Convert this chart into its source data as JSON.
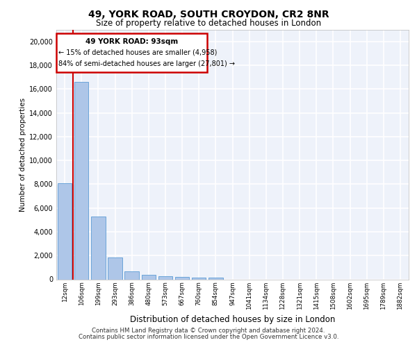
{
  "title_line1": "49, YORK ROAD, SOUTH CROYDON, CR2 8NR",
  "title_line2": "Size of property relative to detached houses in London",
  "xlabel": "Distribution of detached houses by size in London",
  "ylabel": "Number of detached properties",
  "categories": [
    "12sqm",
    "106sqm",
    "199sqm",
    "293sqm",
    "386sqm",
    "480sqm",
    "573sqm",
    "667sqm",
    "760sqm",
    "854sqm",
    "947sqm",
    "1041sqm",
    "1134sqm",
    "1228sqm",
    "1321sqm",
    "1415sqm",
    "1508sqm",
    "1602sqm",
    "1695sqm",
    "1789sqm",
    "1882sqm"
  ],
  "values": [
    8100,
    16600,
    5300,
    1850,
    700,
    380,
    270,
    210,
    170,
    130,
    0,
    0,
    0,
    0,
    0,
    0,
    0,
    0,
    0,
    0,
    0
  ],
  "bar_color": "#aec6e8",
  "bar_edge_color": "#5b9bd5",
  "annotation_title": "49 YORK ROAD: 93sqm",
  "annotation_line2": "← 15% of detached houses are smaller (4,958)",
  "annotation_line3": "84% of semi-detached houses are larger (27,801) →",
  "annotation_box_color": "#cc0000",
  "vline_color": "#cc0000",
  "vline_x": 0.5,
  "ylim": [
    0,
    21000
  ],
  "yticks": [
    0,
    2000,
    4000,
    6000,
    8000,
    10000,
    12000,
    14000,
    16000,
    18000,
    20000
  ],
  "background_color": "#eef2fa",
  "grid_color": "#ffffff",
  "footer_line1": "Contains HM Land Registry data © Crown copyright and database right 2024.",
  "footer_line2": "Contains public sector information licensed under the Open Government Licence v3.0."
}
